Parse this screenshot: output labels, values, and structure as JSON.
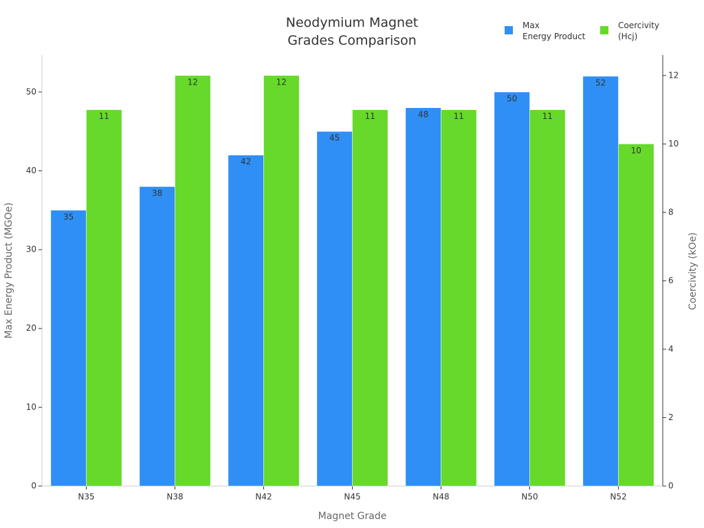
{
  "chart_data": {
    "type": "bar",
    "title": "Neodymium Magnet\nGrades Comparison",
    "x_label": "Magnet Grade",
    "y_label": "Max Energy Product (MGOe)",
    "y2_label": "Coercivity (kOe)",
    "categories": [
      "N35",
      "N38",
      "N42",
      "N45",
      "N48",
      "N50",
      "N52"
    ],
    "series": [
      {
        "name": "Max\nEnergy Product",
        "color": "#2f8ff5",
        "values": [
          35,
          38,
          42,
          45,
          48,
          50,
          52
        ]
      },
      {
        "name": "Coercivity\n(Hcj)",
        "color": "#66d92a",
        "axis": "y2",
        "values": [
          11,
          12,
          12,
          11,
          11,
          11,
          10
        ]
      }
    ],
    "ylim": [
      0,
      54.7
    ],
    "yticks": [
      0,
      10,
      20,
      30,
      40,
      50
    ],
    "y2lim": [
      0,
      12.6
    ],
    "y2ticks": [
      0,
      2,
      4,
      6,
      8,
      10,
      12
    ],
    "legend": "top-right"
  }
}
